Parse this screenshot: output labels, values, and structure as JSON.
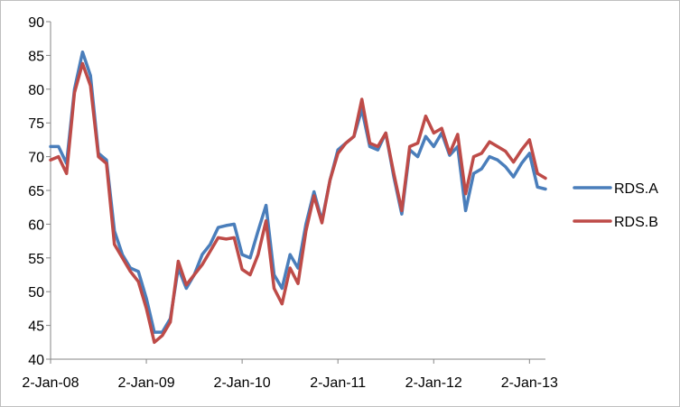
{
  "chart_data": {
    "type": "line",
    "title": "",
    "xlabel": "",
    "ylabel": "",
    "ylim": [
      40,
      90
    ],
    "yticks": [
      40,
      45,
      50,
      55,
      60,
      65,
      70,
      75,
      80,
      85,
      90
    ],
    "xtick_labels": [
      "2-Jan-08",
      "2-Jan-09",
      "2-Jan-10",
      "2-Jan-11",
      "2-Jan-12",
      "2-Jan-13"
    ],
    "grid": false,
    "legend_position": "right",
    "x_unit": "month",
    "x_start": "2008-01",
    "series": [
      {
        "name": "RDS.A",
        "color": "#4a7ebb",
        "values": [
          71.5,
          71.5,
          69,
          80,
          85.5,
          82,
          70.5,
          69.5,
          59,
          55.5,
          53.5,
          53,
          49,
          44,
          44,
          46,
          53.5,
          50.5,
          52.5,
          55.5,
          57,
          59.5,
          59.8,
          60,
          55.5,
          55,
          59,
          62.8,
          52.5,
          50.5,
          55.5,
          53.5,
          60,
          64.8,
          60.5,
          66.5,
          71,
          72,
          73,
          77,
          71.5,
          71,
          73.5,
          67,
          61.5,
          71,
          70,
          73,
          71.5,
          73.5,
          70.2,
          71.5,
          62,
          67.5,
          68.2,
          70,
          69.5,
          68.5,
          67,
          69,
          70.5,
          65.5,
          65.2
        ]
      },
      {
        "name": "RDS.B",
        "color": "#be4b48",
        "values": [
          69.5,
          70,
          67.5,
          79.5,
          83.8,
          80.5,
          70,
          69,
          57,
          55,
          53,
          51.5,
          47.5,
          42.5,
          43.5,
          45.5,
          54.5,
          51,
          52.5,
          54,
          56,
          58,
          57.8,
          58,
          53.3,
          52.5,
          55.5,
          60.5,
          50.5,
          48.2,
          53.5,
          51.2,
          59,
          64.2,
          60.2,
          66.5,
          70.5,
          72,
          73,
          78.5,
          72,
          71.5,
          73.5,
          67.5,
          62,
          71.5,
          72,
          76,
          73.5,
          74.2,
          70.5,
          73.3,
          64.5,
          70,
          70.5,
          72.2,
          71.5,
          70.8,
          69.2,
          71,
          72.5,
          67.5,
          66.8
        ]
      }
    ]
  }
}
